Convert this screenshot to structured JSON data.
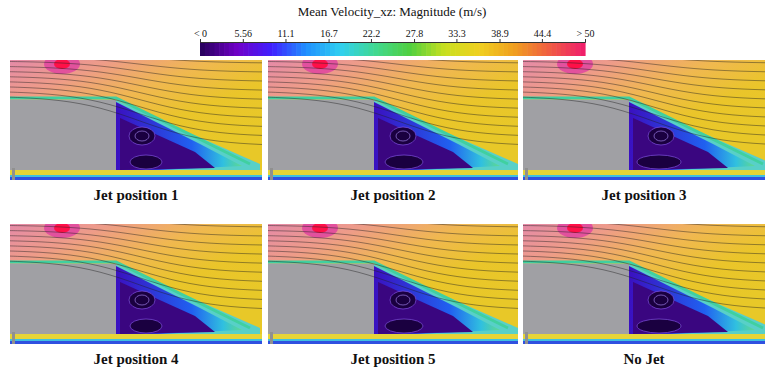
{
  "chart_data": {
    "type": "contour",
    "title": "Mean Velocity_xz: Magnitude (m/s)",
    "colorbar": {
      "range": [
        0,
        50
      ],
      "ticks": [
        {
          "value": 0,
          "label": "< 0"
        },
        5.56,
        11.1,
        16.7,
        22.2,
        27.8,
        33.3,
        38.9,
        44.4,
        {
          "value": 50,
          "label": "> 50"
        }
      ]
    },
    "panels": [
      "Jet position 1",
      "Jet position 2",
      "Jet position 3",
      "Jet position 4",
      "Jet position 5",
      "No Jet"
    ]
  }
}
